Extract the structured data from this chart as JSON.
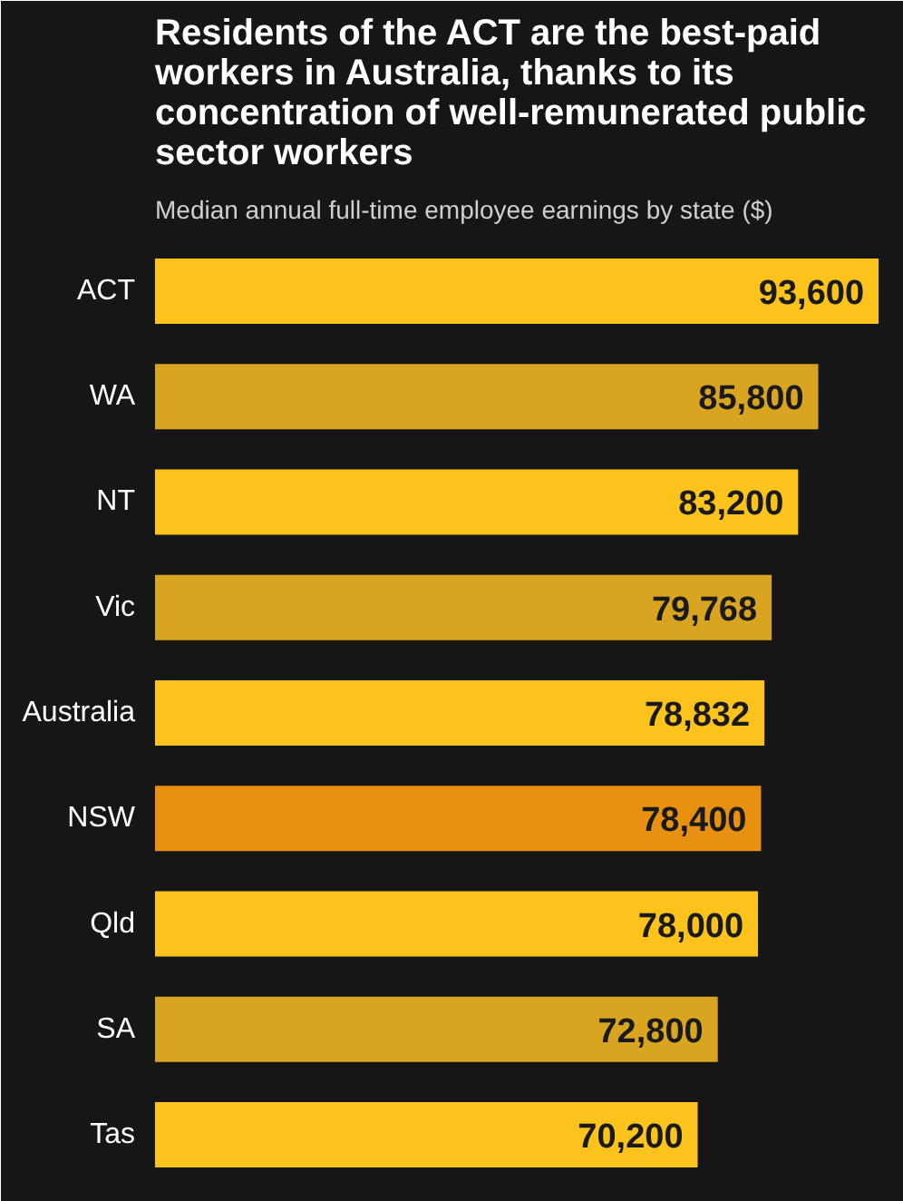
{
  "chart_data": {
    "type": "bar",
    "orientation": "horizontal",
    "title": "Residents of the ACT are the best-paid workers in Australia, thanks to its concentration of well-remunerated public sector workers",
    "subtitle": "Median annual full-time employee earnings by state ($)",
    "categories": [
      "ACT",
      "WA",
      "NT",
      "Vic",
      "Australia",
      "NSW",
      "Qld",
      "SA",
      "Tas"
    ],
    "values": [
      93600,
      85800,
      83200,
      79768,
      78832,
      78400,
      78000,
      72800,
      70200
    ],
    "colors": [
      "#fbc31c",
      "#d9a520",
      "#fbc31c",
      "#d9a520",
      "#fbc31c",
      "#e8900f",
      "#fbc31c",
      "#d9a520",
      "#fbc31c"
    ],
    "value_labels": [
      "93,600",
      "85,800",
      "83,200",
      "79,768",
      "78,832",
      "78,400",
      "78,000",
      "72,800",
      "70,200"
    ],
    "grid": false
  }
}
